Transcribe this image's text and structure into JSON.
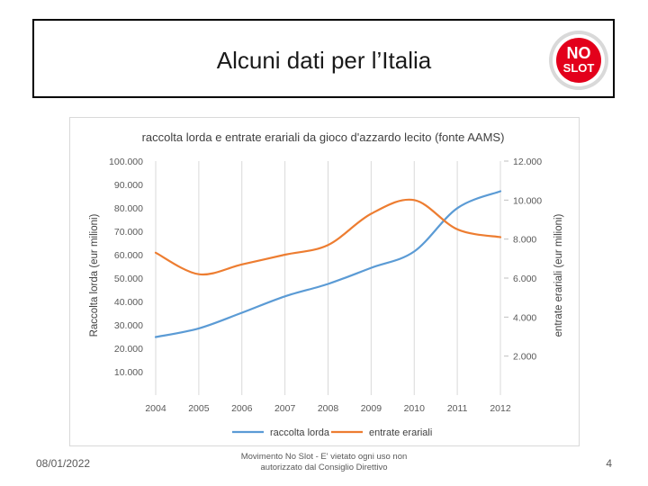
{
  "slide": {
    "title": "Alcuni dati per l’Italia",
    "logo_line1": "NO",
    "logo_line2": "SLOT",
    "footer_date": "08/01/2022",
    "footer_center_line1": "Movimento No Slot - E' vietato ogni uso non",
    "footer_center_line2": "autorizzato dal Consiglio Direttivo",
    "page_number": "4"
  },
  "colors": {
    "raccolta": "#5b9bd5",
    "entrate": "#ed7d31",
    "logo_red": "#e3001b",
    "grid": "#d9d9d9",
    "axis_text": "#595959"
  },
  "chart_data": {
    "type": "line",
    "title": "raccolta lorda e entrate erariali da gioco d'azzardo lecito (fonte AAMS)",
    "categories": [
      "2004",
      "2005",
      "2006",
      "2007",
      "2008",
      "2009",
      "2010",
      "2011",
      "2012"
    ],
    "series": [
      {
        "name": "raccolta lorda",
        "axis": "left",
        "values": [
          24800,
          28500,
          35200,
          42200,
          47500,
          54400,
          61400,
          79900,
          87100
        ]
      },
      {
        "name": "entrate erariali",
        "axis": "right",
        "values": [
          7300,
          6200,
          6700,
          7200,
          7700,
          9300,
          10000,
          8500,
          8100
        ]
      }
    ],
    "ylabel_left": "Raccolta lorda (eur milioni)",
    "ylabel_right": "entrate erariali (eur milioni)",
    "ylim_left": [
      0,
      100000
    ],
    "ylim_right": [
      0,
      12000
    ],
    "left_ticks": [
      "10.000",
      "20.000",
      "30.000",
      "40.000",
      "50.000",
      "60.000",
      "70.000",
      "80.000",
      "90.000",
      "100.000"
    ],
    "right_ticks": [
      "2.000",
      "4.000",
      "6.000",
      "8.000",
      "10.000",
      "12.000"
    ],
    "legend": [
      "raccolta lorda",
      "entrate erariali"
    ],
    "legend_position": "bottom"
  }
}
